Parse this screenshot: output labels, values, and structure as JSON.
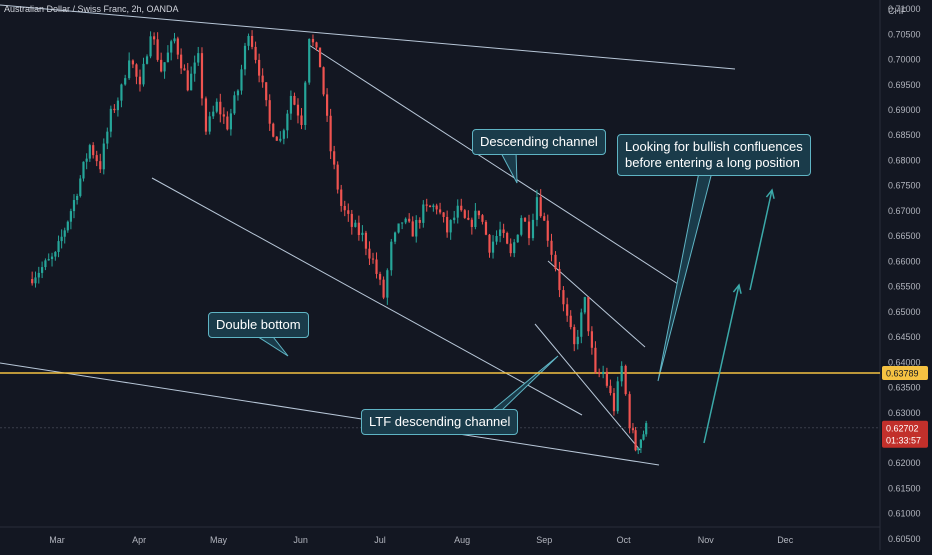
{
  "header": {
    "title": "Australian Dollar / Swiss Franc, 2h, OANDA"
  },
  "axis": {
    "currency": "CHF"
  },
  "price_labels": {
    "level": "0.63789",
    "current": "0.62702",
    "countdown": "01:33:57"
  },
  "annotations": {
    "descending_channel": "Descending channel",
    "double_bottom": "Double bottom",
    "ltf_channel": "LTF descending channel",
    "bullish_line1": "Looking for bullish confluences",
    "bullish_line2": "before entering a long position"
  },
  "colors": {
    "background": "#131722",
    "bull": "#26a69a",
    "bear": "#ef5350",
    "level": "#f5c242",
    "trendline": "#b8c7d8",
    "callout_bg": "#1a3b4a",
    "callout_border": "#5fb4c4",
    "arrow": "#3ba9a9"
  },
  "chart_data": {
    "type": "candlestick",
    "title": "Australian Dollar / Swiss Franc, 2h, OANDA",
    "x_ticks": [
      "Mar",
      "Apr",
      "May",
      "Jun",
      "Jul",
      "Aug",
      "Sep",
      "Oct",
      "Nov",
      "Dec"
    ],
    "y_ticks": [
      "0.71000",
      "0.70500",
      "0.70000",
      "0.69500",
      "0.69000",
      "0.68500",
      "0.68000",
      "0.67500",
      "0.67000",
      "0.66500",
      "0.66000",
      "0.65500",
      "0.65000",
      "0.64500",
      "0.64000",
      "0.63500",
      "0.63000",
      "0.62500",
      "0.62000",
      "0.61500",
      "0.61000",
      "0.60500"
    ],
    "ylim": [
      0.6028,
      0.7118
    ],
    "price_path": [
      {
        "x": "2024-02-20",
        "y": 0.6565
      },
      {
        "x": "2024-03-01",
        "y": 0.661
      },
      {
        "x": "2024-03-08",
        "y": 0.672
      },
      {
        "x": "2024-03-14",
        "y": 0.683
      },
      {
        "x": "2024-03-18",
        "y": 0.679
      },
      {
        "x": "2024-03-22",
        "y": 0.689
      },
      {
        "x": "2024-03-26",
        "y": 0.694
      },
      {
        "x": "2024-03-29",
        "y": 0.701
      },
      {
        "x": "2024-04-02",
        "y": 0.694
      },
      {
        "x": "2024-04-06",
        "y": 0.706
      },
      {
        "x": "2024-04-10",
        "y": 0.698
      },
      {
        "x": "2024-04-15",
        "y": 0.704
      },
      {
        "x": "2024-04-20",
        "y": 0.695
      },
      {
        "x": "2024-04-24",
        "y": 0.7
      },
      {
        "x": "2024-04-27",
        "y": 0.686
      },
      {
        "x": "2024-05-01",
        "y": 0.691
      },
      {
        "x": "2024-05-05",
        "y": 0.687
      },
      {
        "x": "2024-05-09",
        "y": 0.694
      },
      {
        "x": "2024-05-13",
        "y": 0.706
      },
      {
        "x": "2024-05-17",
        "y": 0.698
      },
      {
        "x": "2024-05-21",
        "y": 0.687
      },
      {
        "x": "2024-05-25",
        "y": 0.684
      },
      {
        "x": "2024-05-29",
        "y": 0.693
      },
      {
        "x": "2024-06-02",
        "y": 0.688
      },
      {
        "x": "2024-06-05",
        "y": 0.705
      },
      {
        "x": "2024-06-09",
        "y": 0.699
      },
      {
        "x": "2024-06-13",
        "y": 0.682
      },
      {
        "x": "2024-06-17",
        "y": 0.671
      },
      {
        "x": "2024-06-21",
        "y": 0.667
      },
      {
        "x": "2024-06-25",
        "y": 0.665
      },
      {
        "x": "2024-06-29",
        "y": 0.66
      },
      {
        "x": "2024-07-03",
        "y": 0.653
      },
      {
        "x": "2024-07-06",
        "y": 0.663
      },
      {
        "x": "2024-07-10",
        "y": 0.668
      },
      {
        "x": "2024-07-14",
        "y": 0.666
      },
      {
        "x": "2024-07-18",
        "y": 0.67
      },
      {
        "x": "2024-07-23",
        "y": 0.671
      },
      {
        "x": "2024-07-27",
        "y": 0.666
      },
      {
        "x": "2024-07-31",
        "y": 0.67
      },
      {
        "x": "2024-08-04",
        "y": 0.667
      },
      {
        "x": "2024-08-08",
        "y": 0.67
      },
      {
        "x": "2024-08-12",
        "y": 0.663
      },
      {
        "x": "2024-08-16",
        "y": 0.666
      },
      {
        "x": "2024-08-20",
        "y": 0.661
      },
      {
        "x": "2024-08-24",
        "y": 0.669
      },
      {
        "x": "2024-08-27",
        "y": 0.666
      },
      {
        "x": "2024-08-30",
        "y": 0.673
      },
      {
        "x": "2024-09-03",
        "y": 0.665
      },
      {
        "x": "2024-09-06",
        "y": 0.659
      },
      {
        "x": "2024-09-09",
        "y": 0.651
      },
      {
        "x": "2024-09-13",
        "y": 0.643
      },
      {
        "x": "2024-09-17",
        "y": 0.652
      },
      {
        "x": "2024-09-21",
        "y": 0.637
      },
      {
        "x": "2024-09-24",
        "y": 0.638
      },
      {
        "x": "2024-09-28",
        "y": 0.631
      },
      {
        "x": "2024-10-01",
        "y": 0.639
      },
      {
        "x": "2024-10-04",
        "y": 0.628
      },
      {
        "x": "2024-10-06",
        "y": 0.623
      },
      {
        "x": "2024-10-08",
        "y": 0.625
      },
      {
        "x": "2024-10-10",
        "y": 0.627
      }
    ],
    "horizontal_level": 0.63789,
    "last_price": 0.62702,
    "annotations": [
      "Descending channel",
      "Double bottom",
      "LTF descending channel",
      "Looking for bullish confluences before entering a long position"
    ]
  }
}
